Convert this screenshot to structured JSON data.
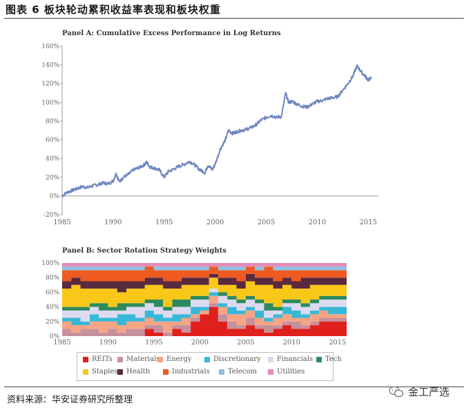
{
  "figure_title": "图表 6 板块轮动累积收益率表现和板块权重",
  "source_note": "资料来源：华安证券研究所整理",
  "watermark": "金工严选",
  "legend": [
    {
      "label": "REITs",
      "color": "#e0201c"
    },
    {
      "label": "Materials",
      "color": "#c7909d"
    },
    {
      "label": "Energy",
      "color": "#f5a583"
    },
    {
      "label": "Discretionary",
      "color": "#38b8d8"
    },
    {
      "label": "Financials",
      "color": "#dcdaf0"
    },
    {
      "label": "Tech",
      "color": "#2e8a5e"
    },
    {
      "label": "Staples",
      "color": "#f8c718"
    },
    {
      "label": "Health",
      "color": "#5a2a3e"
    },
    {
      "label": "Industrials",
      "color": "#ef5a20"
    },
    {
      "label": "Telecom",
      "color": "#8ec0e2"
    },
    {
      "label": "Utilities",
      "color": "#e48ab8"
    }
  ],
  "chart_data": [
    {
      "type": "line",
      "title": "Panel A: Cumulative Excess Performance in Log Returns",
      "xlabel": "",
      "ylabel": "",
      "xlim": [
        1985,
        2016
      ],
      "ylim": [
        -20,
        160
      ],
      "x_ticks": [
        "1985",
        "1990",
        "1995",
        "2000",
        "2005",
        "2010",
        "2015"
      ],
      "y_ticks": [
        "-20%",
        "0%",
        "20%",
        "40%",
        "60%",
        "80%",
        "100%",
        "120%",
        "140%",
        "160%"
      ],
      "series": [
        {
          "color": "#6f86c0",
          "points": [
            [
              1985.0,
              0
            ],
            [
              1985.5,
              4
            ],
            [
              1986.0,
              6
            ],
            [
              1986.5,
              8
            ],
            [
              1987.0,
              10
            ],
            [
              1987.5,
              9
            ],
            [
              1988.0,
              11
            ],
            [
              1988.5,
              12
            ],
            [
              1989.0,
              14
            ],
            [
              1989.5,
              13
            ],
            [
              1990.0,
              16
            ],
            [
              1990.3,
              24
            ],
            [
              1990.6,
              15
            ],
            [
              1991.0,
              20
            ],
            [
              1991.5,
              23
            ],
            [
              1992.0,
              28
            ],
            [
              1992.5,
              30
            ],
            [
              1993.0,
              33
            ],
            [
              1993.3,
              36
            ],
            [
              1993.6,
              31
            ],
            [
              1994.0,
              30
            ],
            [
              1994.5,
              28
            ],
            [
              1995.0,
              20
            ],
            [
              1995.4,
              26
            ],
            [
              1996.0,
              29
            ],
            [
              1996.5,
              32
            ],
            [
              1997.0,
              34
            ],
            [
              1997.5,
              37
            ],
            [
              1998.0,
              33
            ],
            [
              1998.5,
              28
            ],
            [
              1999.0,
              25
            ],
            [
              1999.3,
              33
            ],
            [
              1999.7,
              28
            ],
            [
              2000.0,
              34
            ],
            [
              2000.5,
              50
            ],
            [
              2001.0,
              60
            ],
            [
              2001.3,
              70
            ],
            [
              2001.7,
              67
            ],
            [
              2002.0,
              68
            ],
            [
              2002.5,
              70
            ],
            [
              2003.0,
              71
            ],
            [
              2003.5,
              73
            ],
            [
              2004.0,
              76
            ],
            [
              2004.5,
              81
            ],
            [
              2005.0,
              84
            ],
            [
              2005.5,
              86
            ],
            [
              2006.0,
              84
            ],
            [
              2006.5,
              85
            ],
            [
              2006.9,
              110
            ],
            [
              2007.2,
              100
            ],
            [
              2007.6,
              101
            ],
            [
              2008.0,
              98
            ],
            [
              2008.5,
              96
            ],
            [
              2009.0,
              95
            ],
            [
              2009.5,
              98
            ],
            [
              2010.0,
              101
            ],
            [
              2010.5,
              102
            ],
            [
              2011.0,
              104
            ],
            [
              2011.5,
              105
            ],
            [
              2012.0,
              106
            ],
            [
              2012.5,
              113
            ],
            [
              2013.0,
              120
            ],
            [
              2013.5,
              128
            ],
            [
              2013.9,
              139
            ],
            [
              2014.3,
              133
            ],
            [
              2014.7,
              128
            ],
            [
              2015.0,
              124
            ],
            [
              2015.3,
              126
            ]
          ]
        }
      ]
    },
    {
      "type": "area",
      "title": "Panel B: Sector Rotation Strategy Weights",
      "xlabel": "",
      "ylabel": "",
      "stacked": true,
      "xlim": [
        1985,
        2016
      ],
      "ylim": [
        0,
        100
      ],
      "x_ticks": [
        "1985",
        "1990",
        "1995",
        "2000",
        "2005",
        "2010",
        "2015"
      ],
      "y_ticks": [
        "0%",
        "20%",
        "40%",
        "60%",
        "80%",
        "100%"
      ],
      "x": [
        1985,
        1986,
        1987,
        1988,
        1989,
        1990,
        1991,
        1992,
        1993,
        1994,
        1995,
        1996,
        1997,
        1998,
        1999,
        2000,
        2001,
        2002,
        2003,
        2004,
        2005,
        2006,
        2007,
        2008,
        2009,
        2010,
        2011,
        2012,
        2013,
        2014,
        2015
      ],
      "series": [
        {
          "name": "REITs",
          "values": [
            0,
            0,
            0,
            0,
            0,
            0,
            0,
            0,
            0,
            10,
            5,
            0,
            10,
            5,
            20,
            30,
            40,
            20,
            10,
            10,
            15,
            10,
            5,
            10,
            15,
            10,
            10,
            15,
            20,
            20,
            15
          ]
        },
        {
          "name": "Materials",
          "values": [
            10,
            5,
            10,
            10,
            5,
            10,
            5,
            10,
            10,
            5,
            10,
            5,
            5,
            10,
            5,
            0,
            5,
            10,
            10,
            5,
            10,
            5,
            10,
            5,
            5,
            10,
            5,
            5,
            5,
            5,
            5
          ]
        },
        {
          "name": "Energy",
          "values": [
            10,
            10,
            5,
            10,
            15,
            10,
            10,
            10,
            10,
            10,
            5,
            15,
            5,
            10,
            5,
            5,
            10,
            10,
            10,
            15,
            10,
            10,
            5,
            10,
            10,
            5,
            10,
            10,
            10,
            5,
            10
          ]
        },
        {
          "name": "Discretionary",
          "values": [
            5,
            10,
            5,
            10,
            5,
            5,
            15,
            10,
            5,
            10,
            10,
            5,
            10,
            5,
            10,
            5,
            5,
            5,
            10,
            5,
            5,
            10,
            5,
            5,
            10,
            10,
            5,
            5,
            5,
            10,
            10
          ]
        },
        {
          "name": "Financials",
          "values": [
            10,
            10,
            15,
            10,
            10,
            10,
            5,
            10,
            15,
            10,
            10,
            10,
            10,
            10,
            10,
            10,
            5,
            10,
            10,
            10,
            10,
            10,
            10,
            5,
            5,
            10,
            10,
            10,
            10,
            10,
            10
          ]
        },
        {
          "name": "Tech",
          "values": [
            5,
            5,
            5,
            5,
            10,
            5,
            10,
            5,
            5,
            5,
            10,
            5,
            10,
            10,
            5,
            5,
            0,
            5,
            5,
            5,
            5,
            5,
            10,
            5,
            5,
            5,
            5,
            5,
            5,
            5,
            5
          ]
        },
        {
          "name": "Staples",
          "values": [
            25,
            30,
            25,
            20,
            20,
            25,
            15,
            20,
            20,
            20,
            20,
            25,
            15,
            20,
            15,
            15,
            15,
            10,
            15,
            15,
            20,
            20,
            25,
            25,
            20,
            15,
            20,
            20,
            15,
            15,
            15
          ]
        },
        {
          "name": "Health",
          "values": [
            10,
            10,
            10,
            10,
            10,
            10,
            15,
            10,
            10,
            10,
            10,
            10,
            10,
            10,
            10,
            10,
            5,
            10,
            10,
            10,
            10,
            10,
            10,
            10,
            10,
            10,
            15,
            10,
            10,
            10,
            10
          ]
        },
        {
          "name": "Industrials",
          "values": [
            15,
            10,
            15,
            15,
            15,
            15,
            15,
            15,
            15,
            15,
            10,
            15,
            15,
            10,
            10,
            10,
            10,
            10,
            10,
            15,
            10,
            10,
            15,
            15,
            10,
            15,
            10,
            10,
            10,
            10,
            10
          ]
        },
        {
          "name": "Telecom",
          "values": [
            5,
            5,
            5,
            5,
            5,
            5,
            5,
            5,
            5,
            0,
            5,
            5,
            5,
            5,
            5,
            5,
            0,
            5,
            5,
            5,
            0,
            5,
            0,
            5,
            5,
            5,
            5,
            5,
            5,
            5,
            5
          ]
        },
        {
          "name": "Utilities",
          "values": [
            5,
            5,
            5,
            5,
            5,
            5,
            5,
            5,
            5,
            5,
            5,
            5,
            5,
            5,
            5,
            5,
            5,
            5,
            5,
            5,
            5,
            5,
            5,
            5,
            5,
            5,
            5,
            5,
            5,
            5,
            5
          ]
        }
      ]
    }
  ]
}
